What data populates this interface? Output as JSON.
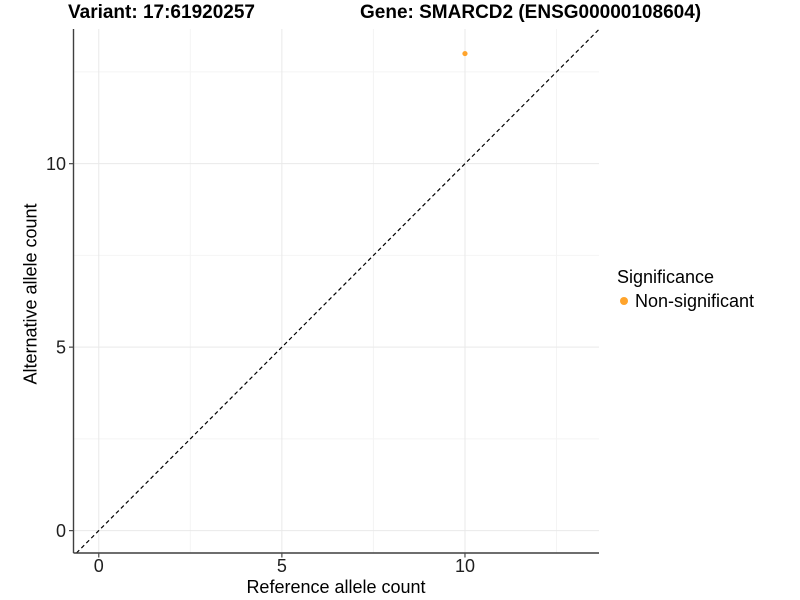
{
  "titles": {
    "left": "Variant: 17:61920257",
    "right": "Gene: SMARCD2 (ENSG00000108604)"
  },
  "chart_data": {
    "type": "scatter",
    "title": "Variant: 17:61920257 — Gene: SMARCD2 (ENSG00000108604)",
    "xlabel": "Reference allele count",
    "ylabel": "Alternative allele count",
    "xlim": [
      -0.69,
      13.66
    ],
    "ylim": [
      -0.61,
      13.67
    ],
    "x_ticks": [
      0,
      5,
      10
    ],
    "y_ticks": [
      0,
      5,
      10
    ],
    "x_minor_ticks": [
      2.5,
      7.5,
      12.5
    ],
    "y_minor_ticks": [
      2.5,
      7.5,
      12.5
    ],
    "grid": true,
    "series": [
      {
        "name": "Non-significant",
        "color": "#FFA42C",
        "points": [
          {
            "x": 10,
            "y": 13
          }
        ]
      }
    ],
    "reference_line": {
      "kind": "identity",
      "slope": 1,
      "intercept": 0,
      "style": "dashed",
      "color": "#000000"
    },
    "legend": {
      "position": "right",
      "title": "Significance",
      "entries": [
        {
          "label": "Non-significant",
          "color": "#FFA42C"
        }
      ]
    }
  },
  "colors": {
    "background": "#FFFFFF",
    "grid_major": "#E9E9E9",
    "grid_minor": "#F4F4F4",
    "axis_line": "#3F3F3F",
    "tick_mark": "#4A4A4A",
    "tick_text": "#1F1F1F",
    "point": "#FFA42C"
  }
}
